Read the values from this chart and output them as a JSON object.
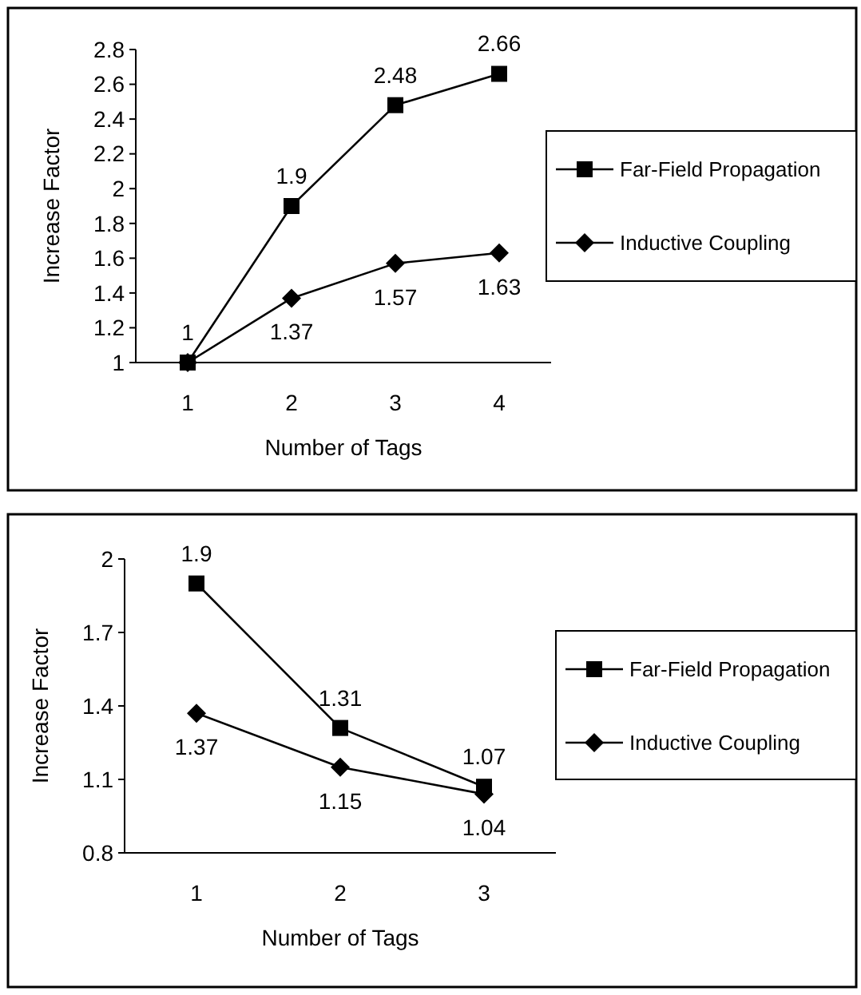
{
  "chart_data": [
    {
      "type": "line",
      "xlabel": "Number of Tags",
      "ylabel": "Increase Factor",
      "categories": [
        "1",
        "2",
        "3",
        "4"
      ],
      "ylim": [
        1,
        2.8
      ],
      "yticks": [
        1,
        1.2,
        1.4,
        1.6,
        1.8,
        2,
        2.2,
        2.4,
        2.6,
        2.8
      ],
      "legend": "right",
      "grid": false,
      "series": [
        {
          "name": "Far-Field Propagation",
          "color": "#000000",
          "marker": "square",
          "values": [
            1,
            1.9,
            2.48,
            2.66
          ],
          "value_labels": [
            "1",
            "1.9",
            "2.48",
            "2.66"
          ]
        },
        {
          "name": "Inductive Coupling",
          "color": "#000000",
          "marker": "diamond",
          "values": [
            1,
            1.37,
            1.57,
            1.63
          ],
          "value_labels": [
            null,
            "1.37",
            "1.57",
            "1.63"
          ]
        }
      ]
    },
    {
      "type": "line",
      "xlabel": "Number of Tags",
      "ylabel": "Increase Factor",
      "categories": [
        "1",
        "2",
        "3"
      ],
      "ylim": [
        0.8,
        2
      ],
      "yticks": [
        0.8,
        1.1,
        1.4,
        1.7,
        2
      ],
      "legend": "right",
      "grid": false,
      "series": [
        {
          "name": "Far-Field Propagation",
          "color": "#000000",
          "marker": "square",
          "values": [
            1.9,
            1.31,
            1.07
          ],
          "value_labels": [
            "1.9",
            "1.31",
            "1.07"
          ]
        },
        {
          "name": "Inductive Coupling",
          "color": "#000000",
          "marker": "diamond",
          "values": [
            1.37,
            1.15,
            1.04
          ],
          "value_labels": [
            "1.37",
            "1.15",
            "1.04"
          ]
        }
      ]
    }
  ]
}
